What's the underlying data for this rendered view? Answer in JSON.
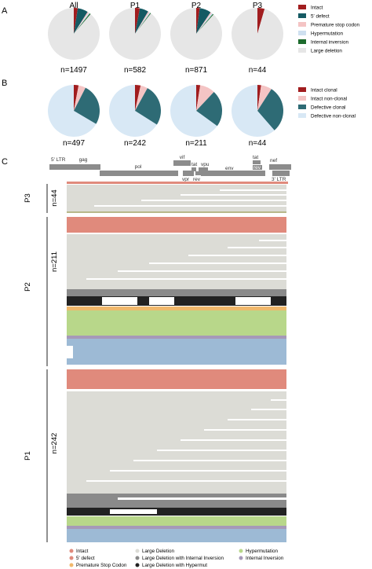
{
  "panels": {
    "a": "A",
    "b": "B",
    "c": "C"
  },
  "colors": {
    "intact": "#a11d1f",
    "defect5": "#155a63",
    "psc": "#f4c4c4",
    "hypermut": "#cfe0f0",
    "inversion": "#1d6b2d",
    "large_del": "#e6e6e6",
    "intact_clonal": "#a11d1f",
    "intact_nonclonal": "#f4c4c4",
    "def_clonal": "#2e6b75",
    "def_nonclonal": "#d8e8f5",
    "c_intact": "#e08a7c",
    "c_5defect": "#e08a7c",
    "c_psc": "#f0b86c",
    "c_largedel": "#dcdcd6",
    "c_ldinv": "#8a8a8a",
    "c_ldhyp": "#222222",
    "c_hyper": "#b8d78a",
    "c_inv": "#a699b8",
    "c_blue": "#9dbad5"
  },
  "legend_a": {
    "items": [
      {
        "label": "Intact",
        "color": "#a11d1f"
      },
      {
        "label": "5' defect",
        "color": "#155a63"
      },
      {
        "label": "Premature stop codon",
        "color": "#f4c4c4"
      },
      {
        "label": "Hypermutation",
        "color": "#cfe0f0"
      },
      {
        "label": "Internal inversion",
        "color": "#1d6b2d"
      },
      {
        "label": "Large deletion",
        "color": "#e6e6e6"
      }
    ]
  },
  "legend_b": {
    "items": [
      {
        "label": "Intact clonal",
        "color": "#a11d1f"
      },
      {
        "label": "Intact non-clonal",
        "color": "#f4c4c4"
      },
      {
        "label": "Defective clonal",
        "color": "#2e6b75"
      },
      {
        "label": "Defective non-clonal",
        "color": "#d8e8f5"
      }
    ]
  },
  "legend_c": {
    "items": [
      {
        "label": "Intact",
        "color": "#e08a7c"
      },
      {
        "label": "5' defect",
        "color": "#e08a7c"
      },
      {
        "label": "Premature Stop Codon",
        "color": "#f0b86c"
      },
      {
        "label": "Large Deletion",
        "color": "#dcdcd6"
      },
      {
        "label": "Large Deletion with Internal Inversion",
        "color": "#8a8a8a"
      },
      {
        "label": "Large Deletion with Hypermut",
        "color": "#222222"
      },
      {
        "label": "Hypermutation",
        "color": "#b8d78a"
      },
      {
        "label": "Internal Inversion",
        "color": "#a699b8"
      }
    ]
  },
  "genes": {
    "row1": [
      "5' LTR",
      "gag",
      "vif",
      "tat",
      "nef"
    ],
    "row2": [
      "tat",
      "vpu",
      "rev"
    ],
    "row3": [
      "pol",
      "env"
    ],
    "row4": [
      "vpr",
      "rev",
      "3' LTR"
    ]
  },
  "tracks": [
    {
      "name": "P3",
      "n": "n=44"
    },
    {
      "name": "P2",
      "n": "n=211"
    },
    {
      "name": "P1",
      "n": "n=242"
    }
  ],
  "chart_data": [
    {
      "type": "pie",
      "panel": "A",
      "series_order": [
        "Intact",
        "5' defect",
        "Premature stop codon",
        "Hypermutation",
        "Internal inversion",
        "Large deletion"
      ],
      "pies": [
        {
          "title": "All",
          "n": "n=1497",
          "values": [
            2.5,
            6.5,
            0.8,
            0.8,
            0.7,
            88.7
          ]
        },
        {
          "title": "P1",
          "n": "n=582",
          "values": [
            3.0,
            5.5,
            0.8,
            0.8,
            0.5,
            89.4
          ]
        },
        {
          "title": "P2",
          "n": "n=871",
          "values": [
            2.2,
            7.2,
            0.8,
            0.9,
            0.6,
            88.3
          ]
        },
        {
          "title": "P3",
          "n": "n=44",
          "values": [
            4.5,
            0,
            0,
            0,
            0,
            95.5
          ]
        }
      ]
    },
    {
      "type": "pie",
      "panel": "B",
      "series_order": [
        "Intact clonal",
        "Intact non-clonal",
        "Defective clonal",
        "Defective non-clonal"
      ],
      "pies": [
        {
          "n": "n=497",
          "values": [
            3.0,
            4.5,
            26.0,
            66.5
          ]
        },
        {
          "n": "n=242",
          "values": [
            3.5,
            4.5,
            26.0,
            66.0
          ]
        },
        {
          "n": "n=211",
          "values": [
            2.5,
            9.5,
            23.0,
            65.0
          ]
        },
        {
          "n": "n=44",
          "values": [
            2.3,
            6.8,
            29.5,
            61.4
          ]
        }
      ]
    }
  ]
}
